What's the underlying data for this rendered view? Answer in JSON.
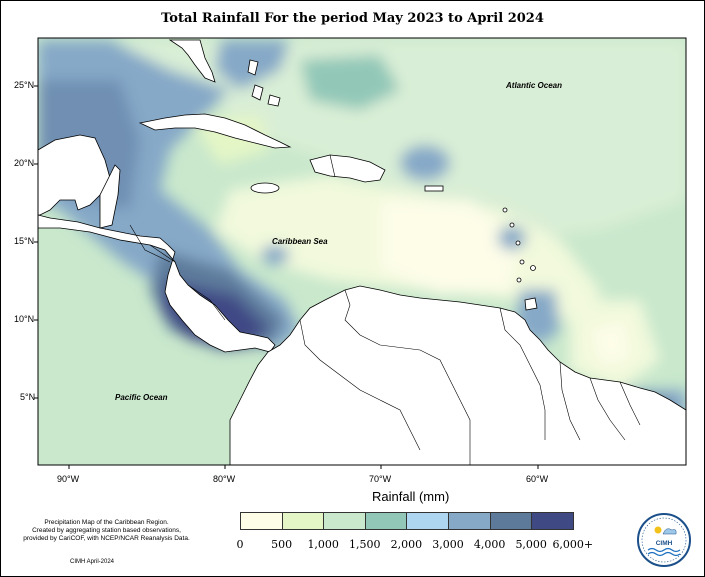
{
  "title": "Total Rainfall For the period May 2023 to April 2024",
  "lat_labels": [
    "25°N",
    "20°N",
    "15°N",
    "10°N",
    "5°N"
  ],
  "lon_labels": [
    "90°W",
    "80°W",
    "70°W",
    "60°W"
  ],
  "oceans": {
    "atlantic": "Atlantic Ocean",
    "caribbean": "Caribbean Sea",
    "pacific": "Pacific Ocean"
  },
  "legend": {
    "title": "Rainfall (mm)",
    "ticks": [
      "0",
      "500",
      "1,000",
      "1,500",
      "2,000",
      "3,000",
      "4,000",
      "5,000",
      "6,000+"
    ],
    "colors": [
      "#fdfde8",
      "#e4f6c6",
      "#c9e8cc",
      "#92c7b8",
      "#aed6f1",
      "#86a9c8",
      "#5d7a9b",
      "#3f4a85"
    ]
  },
  "credit": {
    "line1": "Precipitation Map of the Caribbean Region.",
    "line2": "Created by aggregating station based observations,",
    "line3": "provided by CariCOF, with NCEP/NCAR Reanalysis Data.",
    "date": "CIMH April-2024"
  },
  "logo": {
    "text": "CIMH"
  }
}
